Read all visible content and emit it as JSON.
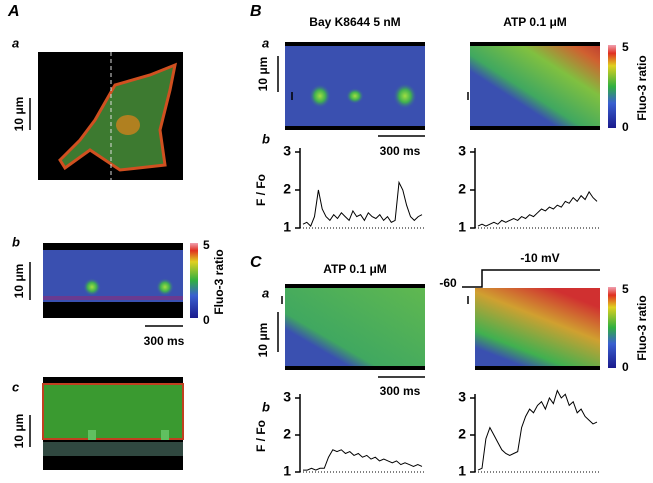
{
  "panel_a": {
    "label": "A",
    "sub_a": "a",
    "sub_b": "b",
    "sub_c": "c",
    "scale_a": "10 μm",
    "scale_b": "10 μm",
    "scale_c": "10 μm",
    "time_scale": "300 ms",
    "colorbar": {
      "ticks": [
        5,
        0
      ],
      "label": "Fluo-3 ratio"
    }
  },
  "panel_b": {
    "label": "B",
    "sub_a": "a",
    "sub_b": "b",
    "titles": [
      "Bay K8644 5 nM",
      "ATP 0.1 μM"
    ],
    "scale": "10 μm",
    "time_scale": "300 ms",
    "colorbar": {
      "ticks": [
        5,
        0
      ],
      "label": "Fluo-3 ratio"
    },
    "y_label": "F / Fo",
    "traces": [
      {
        "ylim": [
          1,
          3
        ],
        "yticks": [
          1,
          2,
          3
        ],
        "values": [
          1.1,
          1.15,
          1.05,
          1.3,
          2.0,
          1.5,
          1.3,
          1.2,
          1.35,
          1.25,
          1.4,
          1.3,
          1.2,
          1.45,
          1.3,
          1.35,
          1.2,
          1.4,
          1.3,
          1.25,
          1.35,
          1.2,
          1.3,
          1.15,
          1.2,
          2.2,
          2.0,
          1.6,
          1.3,
          1.2,
          1.3,
          1.35
        ]
      },
      {
        "ylim": [
          1,
          3
        ],
        "yticks": [
          1,
          2,
          3
        ],
        "values": [
          1.05,
          1.1,
          1.05,
          1.1,
          1.15,
          1.1,
          1.2,
          1.15,
          1.2,
          1.25,
          1.2,
          1.3,
          1.25,
          1.35,
          1.3,
          1.4,
          1.5,
          1.45,
          1.55,
          1.5,
          1.6,
          1.55,
          1.7,
          1.65,
          1.8,
          1.7,
          1.85,
          1.75,
          1.95,
          1.8,
          1.7
        ]
      }
    ]
  },
  "panel_c": {
    "label": "C",
    "sub_a": "a",
    "sub_b": "b",
    "title": "ATP 0.1 μM",
    "holding": "-60",
    "step": "-10 mV",
    "scale": "10 μm",
    "time_scale": "300 ms",
    "colorbar": {
      "ticks": [
        5,
        0
      ],
      "label": "Fluo-3 ratio"
    },
    "y_label": "F / Fo",
    "traces": [
      {
        "ylim": [
          1,
          3
        ],
        "yticks": [
          1,
          2,
          3
        ],
        "values": [
          1.05,
          1.05,
          1.1,
          1.05,
          1.1,
          1.1,
          1.4,
          1.6,
          1.55,
          1.6,
          1.5,
          1.55,
          1.45,
          1.5,
          1.4,
          1.45,
          1.35,
          1.4,
          1.3,
          1.35,
          1.3,
          1.25,
          1.3,
          1.2,
          1.25,
          1.2,
          1.15,
          1.2,
          1.15
        ]
      },
      {
        "ylim": [
          1,
          3
        ],
        "yticks": [
          1,
          2,
          3
        ],
        "values": [
          1.05,
          1.1,
          1.9,
          2.2,
          2.0,
          1.8,
          1.6,
          1.5,
          1.45,
          1.5,
          1.55,
          2.2,
          2.5,
          2.7,
          2.6,
          2.8,
          2.9,
          2.7,
          3.0,
          2.85,
          3.2,
          3.0,
          3.1,
          2.8,
          2.9,
          2.6,
          2.7,
          2.5,
          2.4,
          2.3,
          2.35
        ]
      }
    ]
  }
}
